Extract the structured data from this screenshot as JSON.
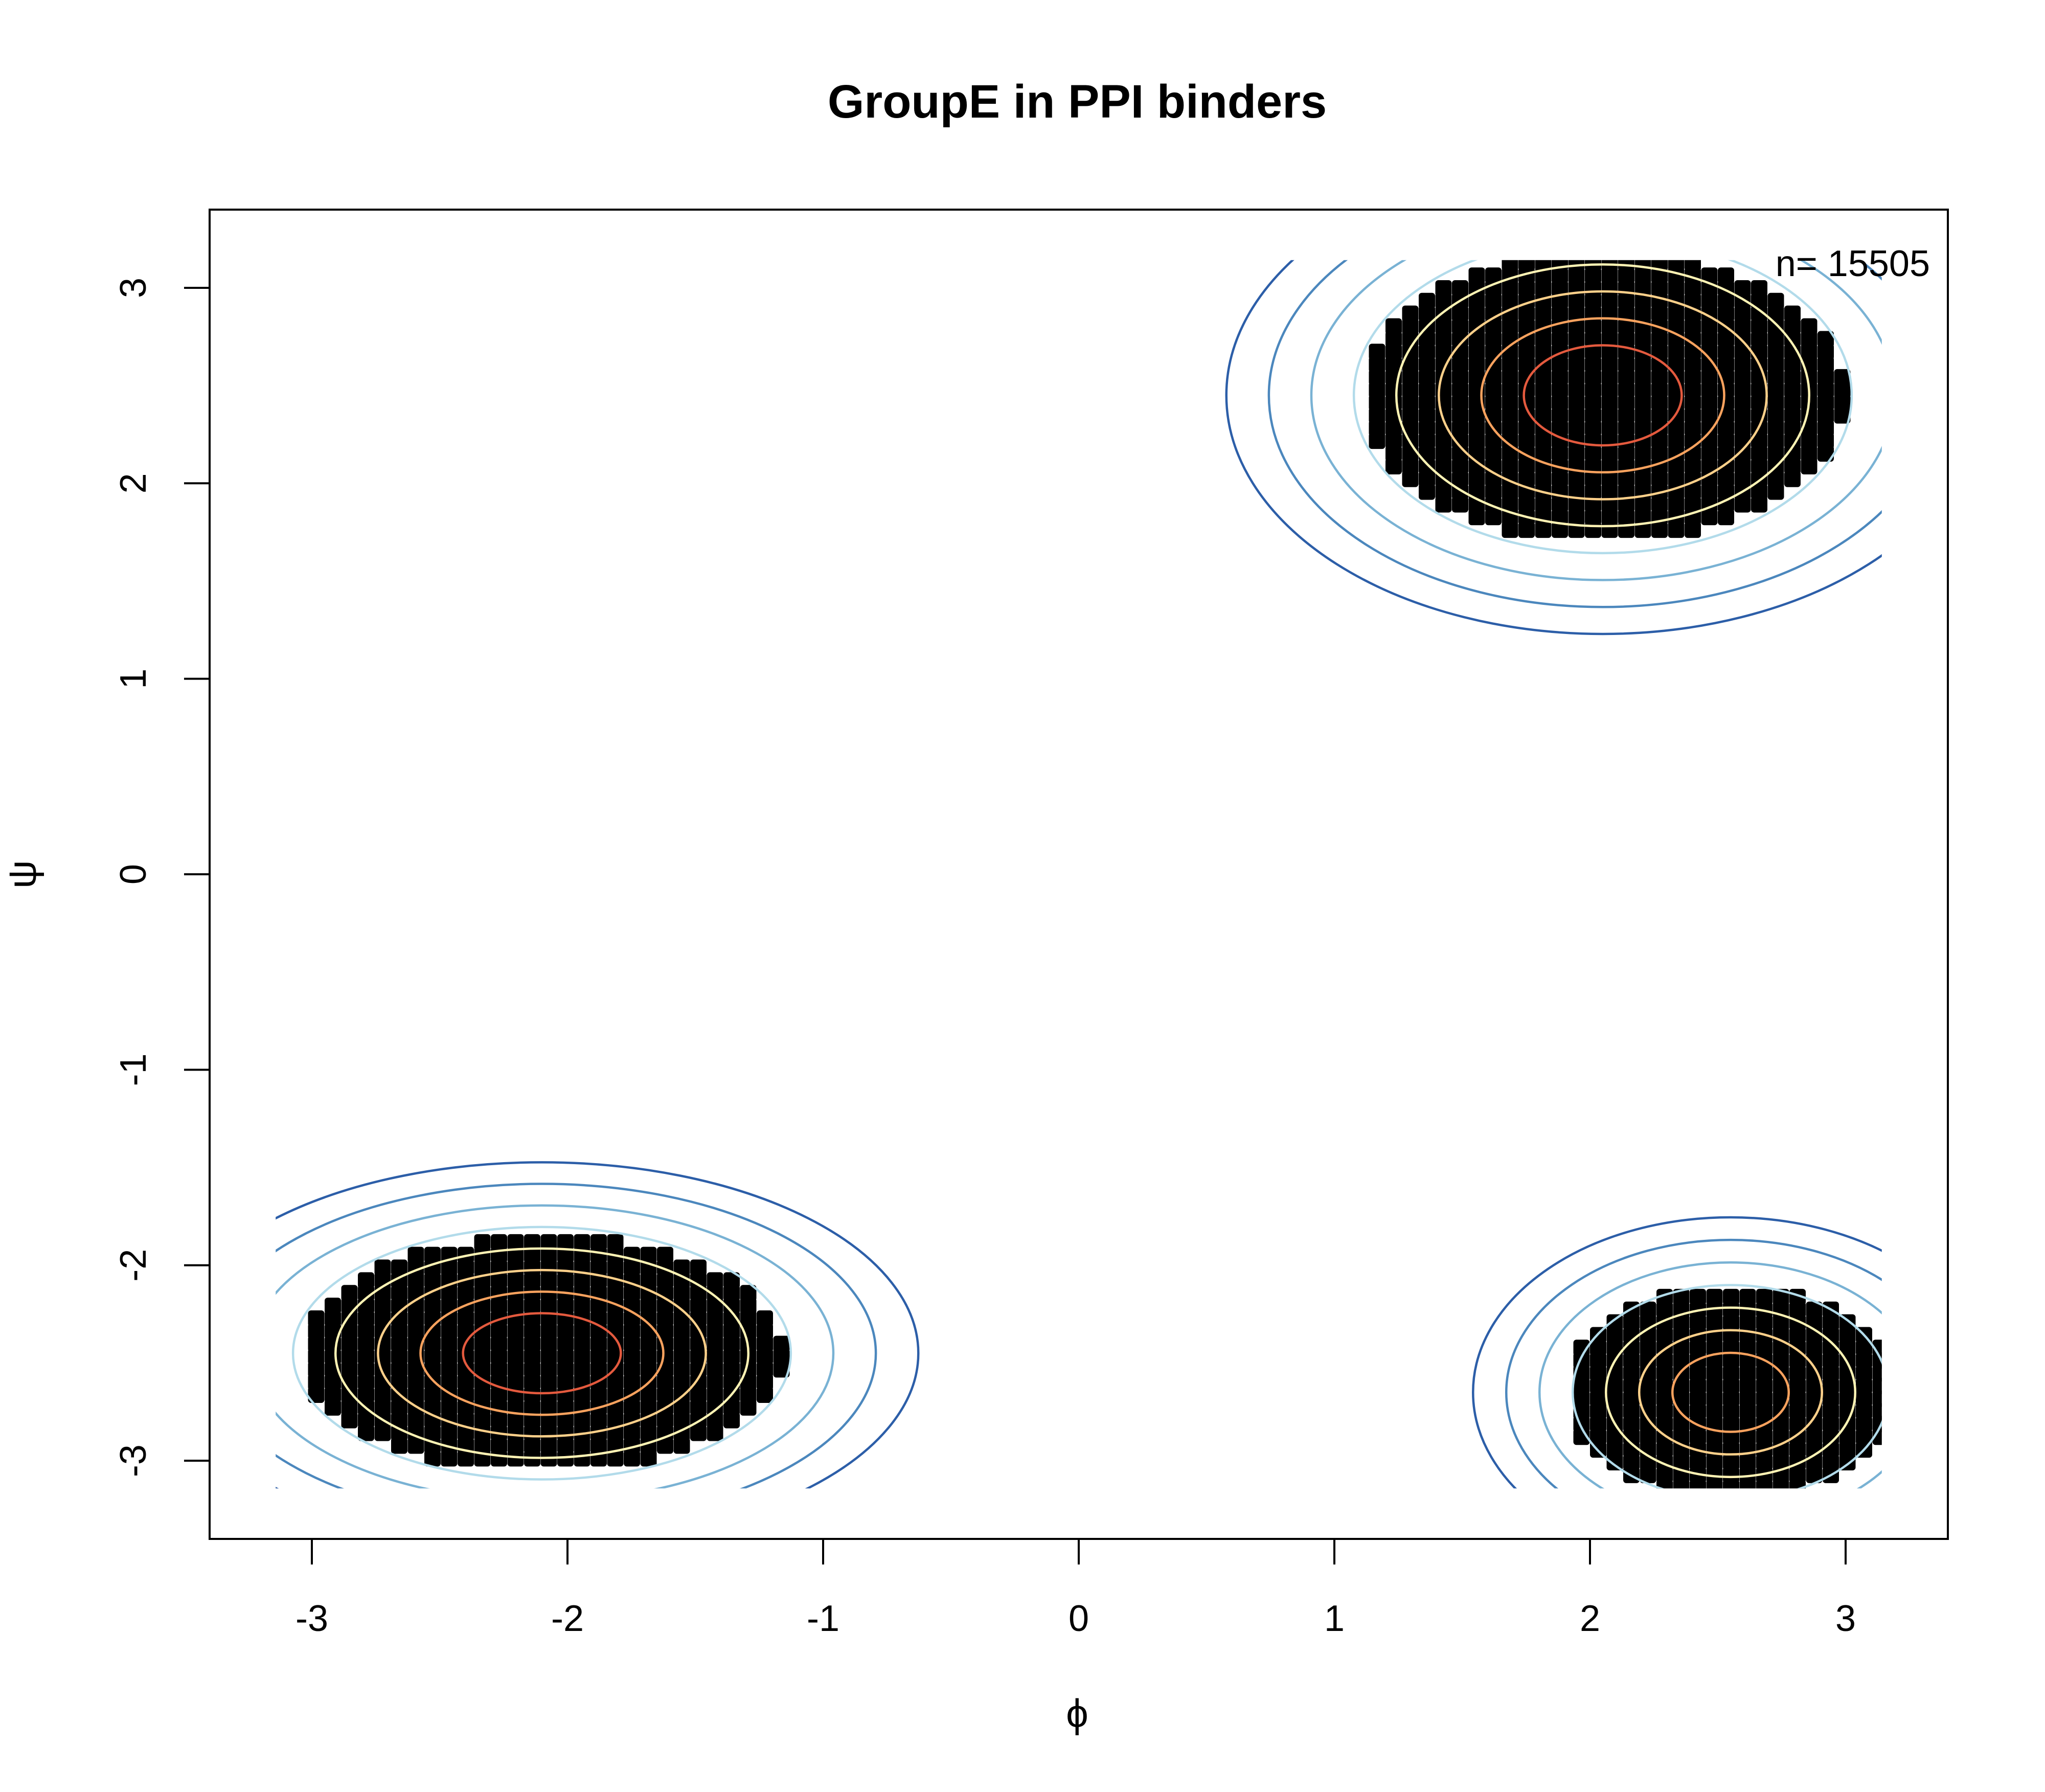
{
  "chart_data": {
    "type": "scatter",
    "title": "GroupE  in PPI binders",
    "xlabel": "ϕ",
    "ylabel": "ψ",
    "xlim": [
      -3.4,
      3.4
    ],
    "ylim": [
      -3.4,
      3.4
    ],
    "x_ticks": [
      -3,
      -2,
      -1,
      0,
      1,
      2,
      3
    ],
    "y_ticks": [
      -3,
      -2,
      -1,
      0,
      1,
      2,
      3
    ],
    "annotation": "n= 15505",
    "grid": false,
    "point_color": "#000000",
    "contour_colors": [
      "#2c5ea8",
      "#4b87bd",
      "#79b2d4",
      "#b2dbea",
      "#fef3b4",
      "#fdd08a",
      "#f9a25e",
      "#e45a3e"
    ],
    "clusters": [
      {
        "center": [
          -2.1,
          -2.45
        ],
        "points_radius": [
          0.95,
          0.6
        ],
        "contour_levels": 8
      },
      {
        "center": [
          2.05,
          2.45
        ],
        "points_radius": [
          0.95,
          0.75
        ],
        "contour_levels": 8
      },
      {
        "center": [
          2.55,
          -2.65
        ],
        "points_radius": [
          0.65,
          0.55
        ],
        "contour_levels": 7
      }
    ]
  }
}
